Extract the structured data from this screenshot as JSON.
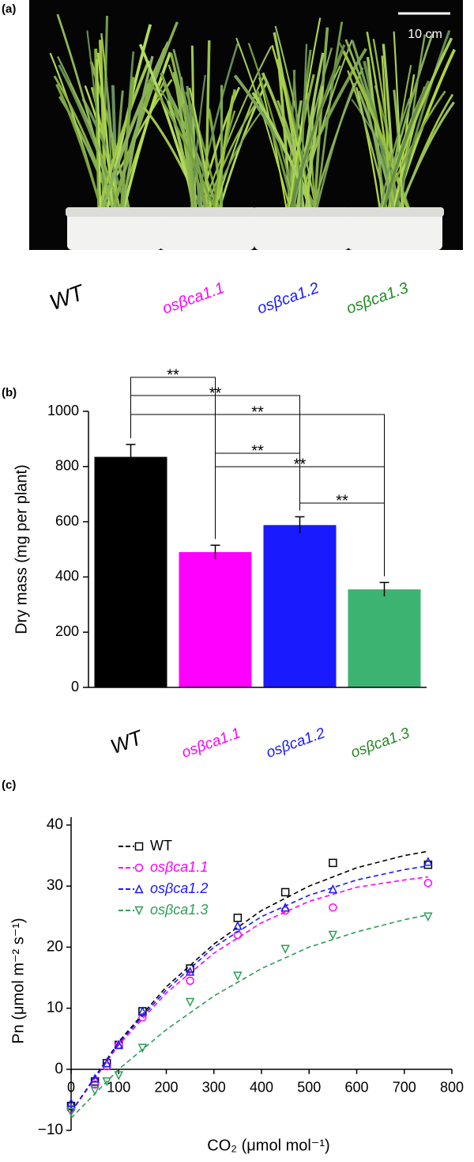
{
  "panel_labels": [
    "(a)",
    "(b)",
    "(c)"
  ],
  "photo": {
    "scale_bar": "10 cm",
    "genotypes": [
      {
        "name": "WT",
        "color": "#000000"
      },
      {
        "name": "osβca1.1",
        "color": "#ff00ff"
      },
      {
        "name": "osβca1.2",
        "color": "#1a1aff"
      },
      {
        "name": "osβca1.3",
        "color": "#228b22"
      }
    ]
  },
  "chart_data": [
    {
      "type": "bar",
      "y_label": "Dry mass (mg per plant)",
      "categories": [
        "WT",
        "osβca1.1",
        "osβca1.2",
        "osβca1.3"
      ],
      "category_colors": [
        "#000000",
        "#ff00ff",
        "#1a1aff",
        "#228b22"
      ],
      "values": [
        835,
        490,
        588,
        355
      ],
      "errors": [
        45,
        25,
        30,
        25
      ],
      "colors": [
        "#000000",
        "#ff00ff",
        "#1a1aff",
        "#3cb371"
      ],
      "ylim": [
        0,
        1000
      ],
      "yticks": [
        0,
        200,
        400,
        600,
        800,
        1000
      ],
      "annotations": [
        "**",
        "**",
        "**",
        "**",
        "**",
        "**"
      ]
    },
    {
      "type": "scatter",
      "x_label": "CO₂ (μmol mol⁻¹)",
      "y_label": "Pn (μmol m⁻² s⁻¹)",
      "x": [
        0,
        50,
        75,
        100,
        150,
        250,
        350,
        450,
        550,
        750
      ],
      "fit_x": [
        0,
        100,
        200,
        300,
        400,
        500,
        600,
        700,
        750
      ],
      "series": [
        {
          "name": "WT",
          "color": "#000000",
          "marker": "square",
          "values": [
            -6,
            -2,
            1,
            4,
            9.5,
            16.5,
            24.8,
            29,
            33.8,
            33.5
          ],
          "fit": [
            -7,
            4.5,
            13.5,
            20.5,
            26,
            30,
            33,
            35,
            35.7
          ]
        },
        {
          "name": "osβca1.1",
          "color": "#ff00ff",
          "marker": "circle",
          "values": [
            -6.5,
            -2.5,
            0.5,
            4,
            8.5,
            14.5,
            22,
            26,
            26.5,
            30.5
          ],
          "fit": [
            -7,
            4,
            12.5,
            19,
            24,
            27.5,
            29.8,
            31,
            31.5
          ]
        },
        {
          "name": "osβca1.2",
          "color": "#1a1aff",
          "marker": "triangle",
          "values": [
            -5.5,
            -1.5,
            1,
            4,
            9.5,
            16,
            23.5,
            26.5,
            29.5,
            34
          ],
          "fit": [
            -7,
            4.3,
            13,
            20,
            25,
            28.5,
            31,
            32.7,
            33.3
          ]
        },
        {
          "name": "osβca1.3",
          "color": "#2e9e5b",
          "marker": "triangle-down",
          "values": [
            -7,
            -3.5,
            -2,
            -1,
            3.5,
            11,
            15.3,
            19.7,
            22,
            25
          ],
          "fit": [
            -8,
            0,
            6.5,
            12,
            16.5,
            20,
            22.5,
            24.5,
            25.3
          ]
        }
      ],
      "xlim": [
        0,
        800
      ],
      "xticks": [
        0,
        100,
        200,
        300,
        400,
        500,
        600,
        700,
        800
      ],
      "ylim": [
        -10,
        40
      ],
      "yticks": [
        {
          "value": -10,
          "label": "−10"
        },
        0,
        10,
        20,
        30,
        40
      ]
    }
  ]
}
